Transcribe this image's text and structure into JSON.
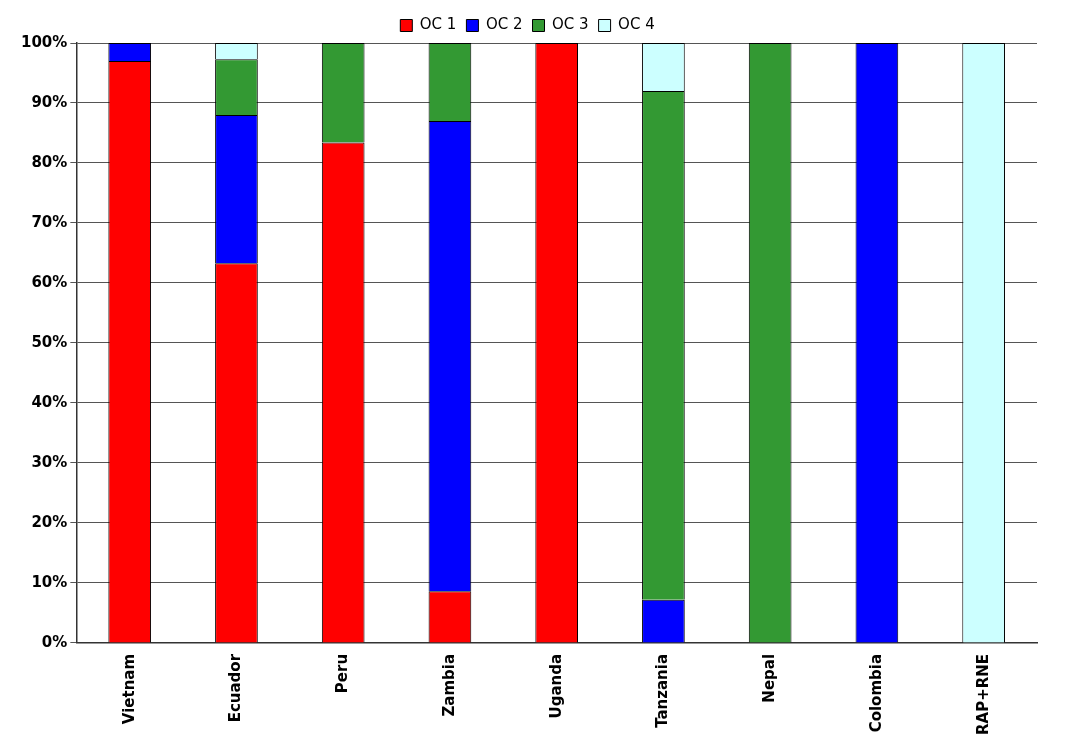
{
  "chart_data": {
    "type": "bar",
    "stacked": true,
    "categories": [
      "Vietnam",
      "Ecuador",
      "Peru",
      "Zambia",
      "Uganda",
      "Tanzania",
      "Nepal",
      "Colombia",
      "RAP+RNE"
    ],
    "series": [
      {
        "name": "OC 1",
        "color": "#ff0000",
        "values": [
          97,
          63.3,
          83.4,
          8.6,
          100,
          0,
          0,
          0,
          0
        ]
      },
      {
        "name": "OC 2",
        "color": "#0000ff",
        "values": [
          3,
          24.7,
          0,
          78.4,
          0,
          7.2,
          0,
          100,
          0
        ]
      },
      {
        "name": "OC 3",
        "color": "#339933",
        "values": [
          0,
          9.3,
          16.6,
          13,
          0,
          84.8,
          100,
          0,
          0
        ]
      },
      {
        "name": "OC 4",
        "color": "#ccffff",
        "values": [
          0,
          2.7,
          0,
          0,
          0,
          8,
          0,
          0,
          100
        ]
      }
    ],
    "ylim": [
      0,
      100
    ],
    "yticks": [
      {
        "value": 0,
        "label": "0%"
      },
      {
        "value": 10,
        "label": "10%"
      },
      {
        "value": 20,
        "label": "20%"
      },
      {
        "value": 30,
        "label": "30%"
      },
      {
        "value": 40,
        "label": "40%"
      },
      {
        "value": 50,
        "label": "50%"
      },
      {
        "value": 60,
        "label": "60%"
      },
      {
        "value": 70,
        "label": "70%"
      },
      {
        "value": 80,
        "label": "80%"
      },
      {
        "value": 90,
        "label": "90%"
      },
      {
        "value": 100,
        "label": "100%"
      }
    ],
    "grid": "y",
    "legend": "top"
  }
}
